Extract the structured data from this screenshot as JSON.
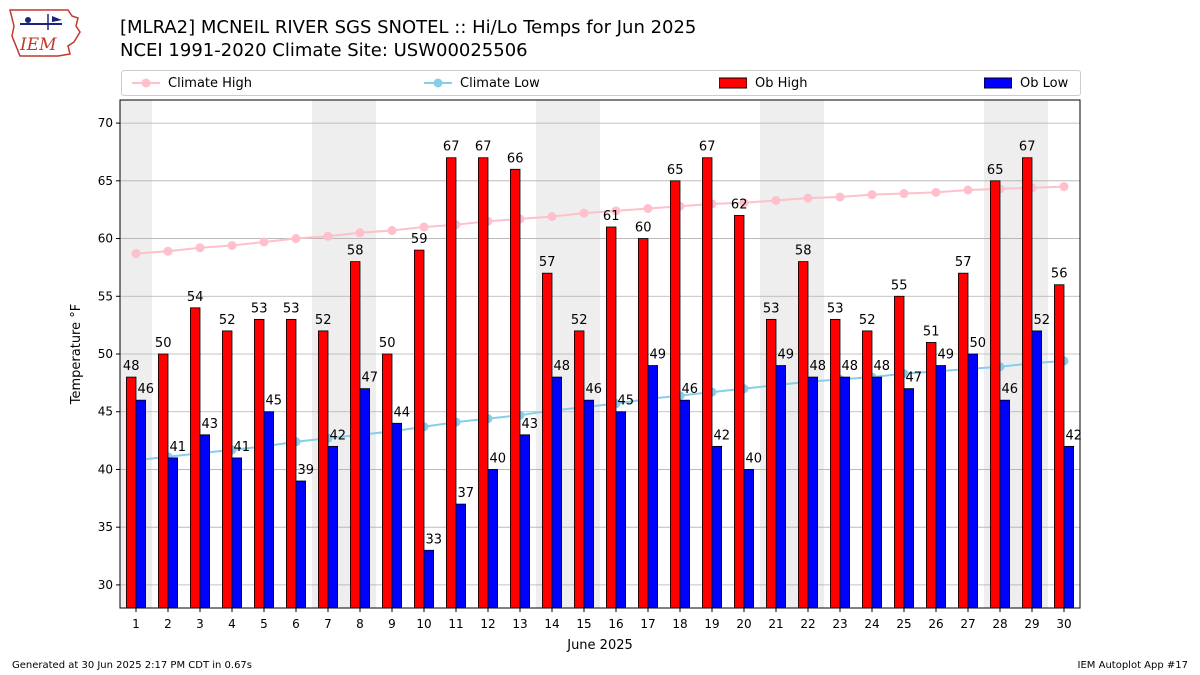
{
  "header": {
    "title_line1": "[MLRA2] MCNEIL RIVER SGS SNOTEL :: Hi/Lo Temps for Jun 2025",
    "title_line2": "NCEI 1991-2020 Climate Site: USW00025506",
    "logo_text": "IEM"
  },
  "footer": {
    "left": "Generated at 30 Jun 2025 2:17 PM CDT in 0.67s",
    "right": "IEM Autoplot App #17"
  },
  "colors": {
    "ob_high": "#ff0000",
    "ob_low": "#0000ff",
    "climate_high": "#ffc0cb",
    "climate_low": "#87ceeb",
    "weekend_shade": "#eeeeee",
    "grid": "#b0b0b0"
  },
  "chart_data": {
    "type": "bar",
    "title": "[MLRA2] MCNEIL RIVER SGS SNOTEL :: Hi/Lo Temps for Jun 2025",
    "subtitle": "NCEI 1991-2020 Climate Site: USW00025506",
    "xlabel": "June 2025",
    "ylabel": "Temperature °F",
    "ylim": [
      28,
      72
    ],
    "yticks": [
      30,
      35,
      40,
      45,
      50,
      55,
      60,
      65,
      70
    ],
    "grid": "horizontal",
    "legend_placement": "top",
    "categories": [
      1,
      2,
      3,
      4,
      5,
      6,
      7,
      8,
      9,
      10,
      11,
      12,
      13,
      14,
      15,
      16,
      17,
      18,
      19,
      20,
      21,
      22,
      23,
      24,
      25,
      26,
      27,
      28,
      29,
      30
    ],
    "shaded_days": [
      1,
      7,
      8,
      14,
      15,
      21,
      22,
      28,
      29
    ],
    "series": [
      {
        "name": "Climate High",
        "kind": "line",
        "values": [
          58.7,
          58.9,
          59.2,
          59.4,
          59.7,
          60.0,
          60.2,
          60.5,
          60.7,
          61.0,
          61.2,
          61.5,
          61.7,
          61.9,
          62.2,
          62.4,
          62.6,
          62.8,
          63.0,
          63.1,
          63.3,
          63.5,
          63.6,
          63.8,
          63.9,
          64.0,
          64.2,
          64.3,
          64.4,
          64.5
        ]
      },
      {
        "name": "Climate Low",
        "kind": "line",
        "values": [
          40.8,
          41.1,
          41.4,
          41.7,
          42.0,
          42.4,
          42.7,
          43.0,
          43.3,
          43.7,
          44.1,
          44.4,
          44.7,
          45.1,
          45.4,
          45.7,
          46.1,
          46.4,
          46.7,
          47.0,
          47.3,
          47.6,
          47.8,
          48.0,
          48.3,
          48.5,
          48.7,
          48.9,
          49.2,
          49.4
        ]
      },
      {
        "name": "Ob High",
        "kind": "bar",
        "values": [
          48,
          50,
          54,
          52,
          53,
          53,
          52,
          58,
          50,
          59,
          67,
          67,
          66,
          57,
          52,
          61,
          60,
          65,
          67,
          62,
          53,
          58,
          53,
          52,
          55,
          51,
          57,
          65,
          67,
          56
        ]
      },
      {
        "name": "Ob Low",
        "kind": "bar",
        "values": [
          46,
          41,
          43,
          41,
          45,
          39,
          42,
          47,
          44,
          33,
          37,
          40,
          43,
          48,
          46,
          45,
          49,
          46,
          42,
          40,
          49,
          48,
          48,
          48,
          47,
          49,
          50,
          46,
          52,
          42
        ]
      }
    ]
  }
}
